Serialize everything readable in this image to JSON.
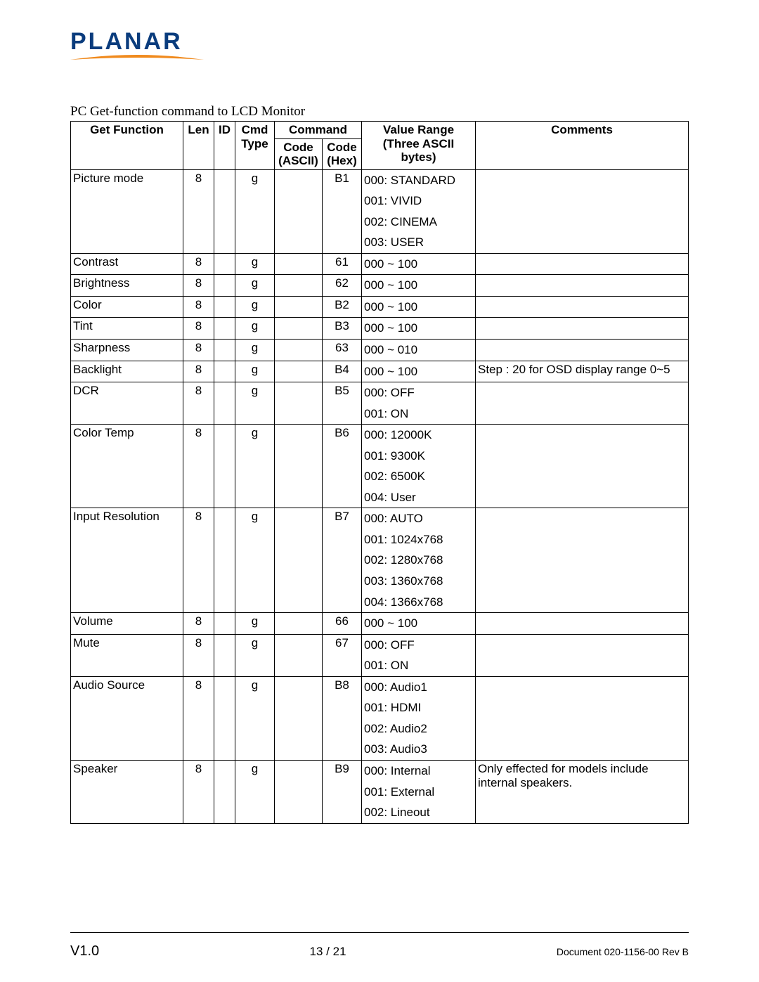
{
  "logo": {
    "text": "PLANAR",
    "text_color": "#0a3c7d",
    "swoosh_color": "#f08a1d"
  },
  "caption": "PC Get-function command to LCD Monitor",
  "table": {
    "header": {
      "func": "Get Function",
      "len": "Len",
      "id": "ID",
      "cmd_type_top": "Cmd",
      "cmd_type_bot": "Type",
      "command": "Command",
      "code_ascii_top": "Code",
      "code_ascii_bot": "(ASCII)",
      "code_hex_top": "Code",
      "code_hex_bot": "(Hex)",
      "range_top": "Value Range",
      "range_mid": "(Three ASCII",
      "range_bot": "bytes)",
      "comments": "Comments"
    },
    "rows": [
      {
        "func": "Picture mode",
        "len": "8",
        "id": "",
        "type": "g",
        "ascii": "",
        "hex": "B1",
        "range": [
          "000: STANDARD",
          "001: VIVID",
          "002: CINEMA",
          "003: USER"
        ],
        "comments": ""
      },
      {
        "func": "Contrast",
        "len": "8",
        "id": "",
        "type": "g",
        "ascii": "",
        "hex": "61",
        "range": [
          "000 ~ 100"
        ],
        "comments": ""
      },
      {
        "func": "Brightness",
        "len": "8",
        "id": "",
        "type": "g",
        "ascii": "",
        "hex": "62",
        "range": [
          "000 ~ 100"
        ],
        "comments": ""
      },
      {
        "func": "Color",
        "len": "8",
        "id": "",
        "type": "g",
        "ascii": "",
        "hex": "B2",
        "range": [
          "000 ~ 100"
        ],
        "comments": ""
      },
      {
        "func": "Tint",
        "len": "8",
        "id": "",
        "type": "g",
        "ascii": "",
        "hex": "B3",
        "range": [
          "000 ~ 100"
        ],
        "comments": ""
      },
      {
        "func": "Sharpness",
        "len": "8",
        "id": "",
        "type": "g",
        "ascii": "",
        "hex": "63",
        "range": [
          "000 ~ 010"
        ],
        "comments": ""
      },
      {
        "func": "Backlight",
        "len": "8",
        "id": "",
        "type": "g",
        "ascii": "",
        "hex": "B4",
        "range": [
          "000 ~ 100"
        ],
        "comments": "Step : 20 for OSD display range 0~5"
      },
      {
        "func": "DCR",
        "len": "8",
        "id": "",
        "type": "g",
        "ascii": "",
        "hex": "B5",
        "range": [
          "000: OFF",
          "001: ON"
        ],
        "comments": ""
      },
      {
        "func": "Color Temp",
        "len": "8",
        "id": "",
        "type": "g",
        "ascii": "",
        "hex": "B6",
        "range": [
          "000: 12000K",
          "001: 9300K",
          "002: 6500K",
          "004: User"
        ],
        "comments": ""
      },
      {
        "func": "Input Resolution",
        "len": "8",
        "id": "",
        "type": "g",
        "ascii": "",
        "hex": "B7",
        "range": [
          "000: AUTO",
          "001: 1024x768",
          "002: 1280x768",
          "003: 1360x768",
          "004: 1366x768"
        ],
        "comments": ""
      },
      {
        "func": "Volume",
        "len": "8",
        "id": "",
        "type": "g",
        "ascii": "",
        "hex": "66",
        "range": [
          "000 ~ 100"
        ],
        "comments": ""
      },
      {
        "func": "Mute",
        "len": "8",
        "id": "",
        "type": "g",
        "ascii": "",
        "hex": "67",
        "range": [
          "000: OFF",
          "001: ON"
        ],
        "comments": ""
      },
      {
        "func": "Audio Source",
        "len": "8",
        "id": "",
        "type": "g",
        "ascii": "",
        "hex": "B8",
        "range": [
          "000: Audio1",
          "001: HDMI",
          "002: Audio2",
          "003: Audio3"
        ],
        "comments": ""
      },
      {
        "func": "Speaker",
        "len": "8",
        "id": "",
        "type": "g",
        "ascii": "",
        "hex": "B9",
        "range": [
          "000: Internal",
          "001: External",
          "002: Lineout"
        ],
        "comments": "Only effected for models include internal speakers."
      }
    ]
  },
  "footer": {
    "version": "V1.0",
    "page": "13 / 21",
    "docref": "Document 020-1156-00 Rev B"
  }
}
